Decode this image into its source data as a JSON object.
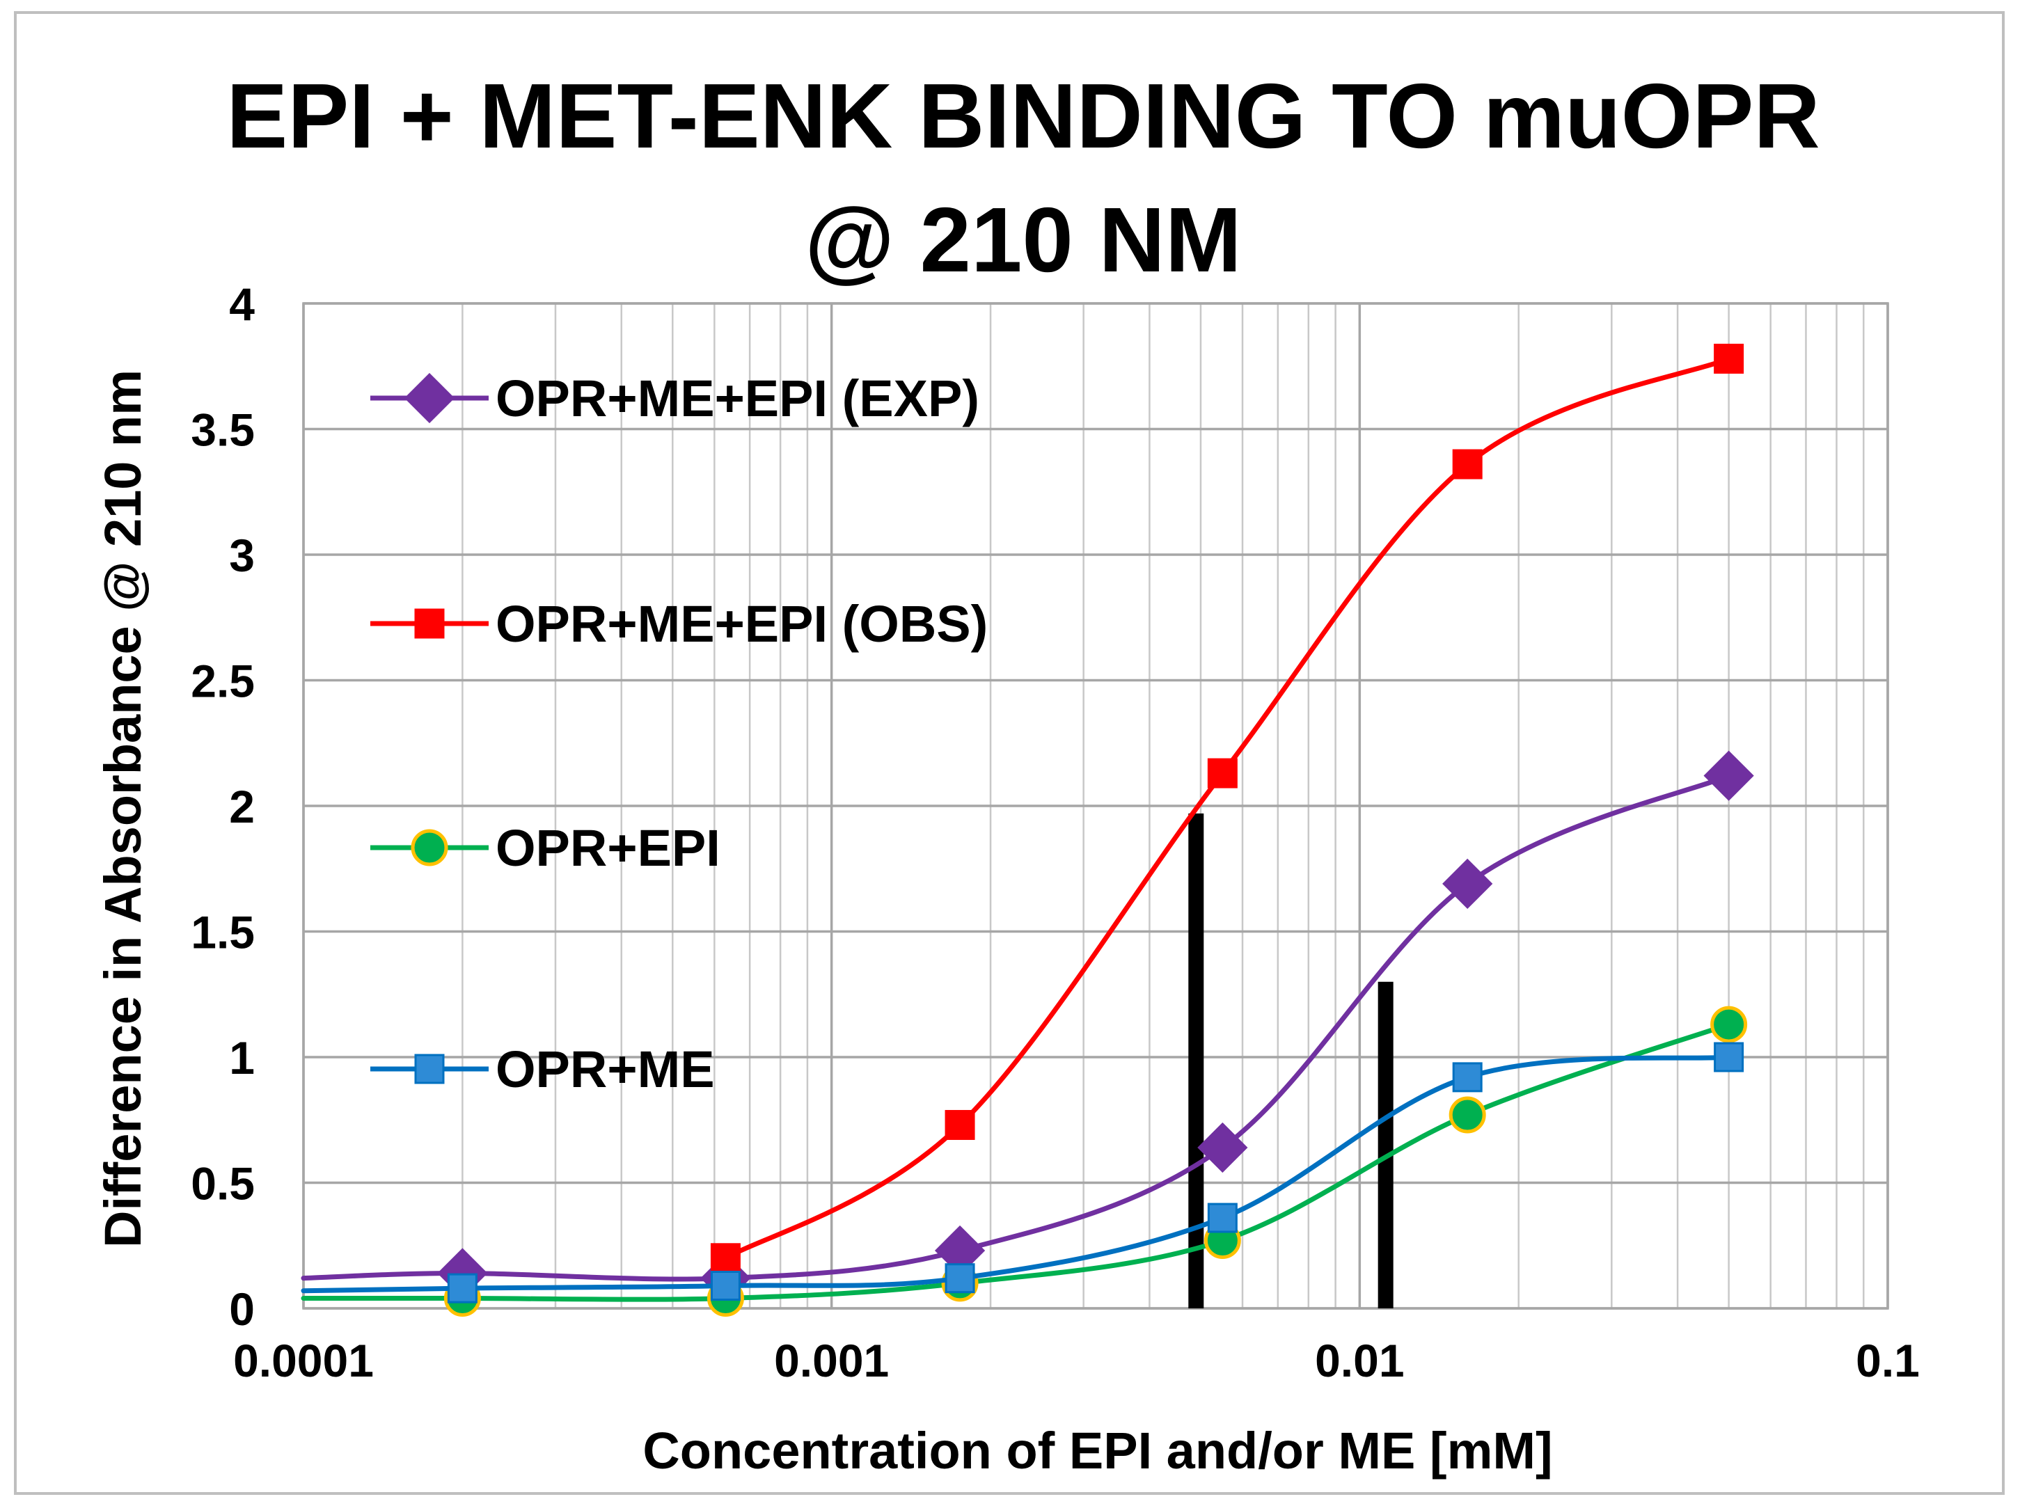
{
  "chart_data": {
    "type": "line",
    "title_lines": [
      "EPI + MET-ENK BINDING TO muOPR",
      "@ 210 NM"
    ],
    "xlabel": "Concentration of EPI and/or ME [mM]",
    "ylabel": "Difference in Absorbance @ 210 nm",
    "x_scale": "log",
    "xlim": [
      0.0001,
      0.1
    ],
    "ylim": [
      0,
      4
    ],
    "x_ticks": [
      0.0001,
      0.001,
      0.01,
      0.1
    ],
    "x_tick_labels": [
      "0.0001",
      "0.001",
      "0.01",
      "0.1"
    ],
    "y_ticks": [
      0,
      0.5,
      1,
      1.5,
      2,
      2.5,
      3,
      3.5,
      4
    ],
    "y_tick_labels": [
      "0",
      "0.5",
      "1",
      "1.5",
      "2",
      "2.5",
      "3",
      "3.5",
      "4"
    ],
    "grid": true,
    "series": [
      {
        "name": "OPR+ME+EPI (EXP)",
        "color": "#7030a0",
        "marker": "diamond",
        "line_start": [
          0.0001,
          0.12
        ],
        "x": [
          0.0002,
          0.00063,
          0.00175,
          0.0055,
          0.016,
          0.05
        ],
        "y": [
          0.14,
          0.12,
          0.23,
          0.64,
          1.69,
          2.12
        ]
      },
      {
        "name": "OPR+ME+EPI (OBS)",
        "color": "#ff0000",
        "marker": "square",
        "x": [
          0.00063,
          0.00175,
          0.0055,
          0.016,
          0.05
        ],
        "y": [
          0.2,
          0.73,
          2.13,
          3.36,
          3.78
        ]
      },
      {
        "name": "OPR+EPI",
        "color": "#00b050",
        "marker": "circle",
        "marker_fill": "#00b050",
        "marker_edge": "#ffc000",
        "line_start": [
          0.0001,
          0.04
        ],
        "x": [
          0.0002,
          0.00063,
          0.00175,
          0.0055,
          0.016,
          0.05
        ],
        "y": [
          0.04,
          0.04,
          0.1,
          0.27,
          0.77,
          1.13
        ]
      },
      {
        "name": "OPR+ME",
        "color": "#0070c0",
        "marker": "square",
        "marker_fill": "#2e8bd6",
        "line_start": [
          0.0001,
          0.07
        ],
        "x": [
          0.0002,
          0.00063,
          0.00175,
          0.0055,
          0.016,
          0.05
        ],
        "y": [
          0.08,
          0.09,
          0.12,
          0.36,
          0.92,
          1.0
        ]
      }
    ],
    "annotations": [
      {
        "type": "vertical-bar",
        "x": 0.0049,
        "y_from": 0,
        "y_to": 1.97,
        "color": "#000000"
      },
      {
        "type": "vertical-bar",
        "x": 0.0112,
        "y_from": 0,
        "y_to": 1.3,
        "color": "#000000"
      }
    ],
    "legend_position": "upper-left inside plot"
  }
}
